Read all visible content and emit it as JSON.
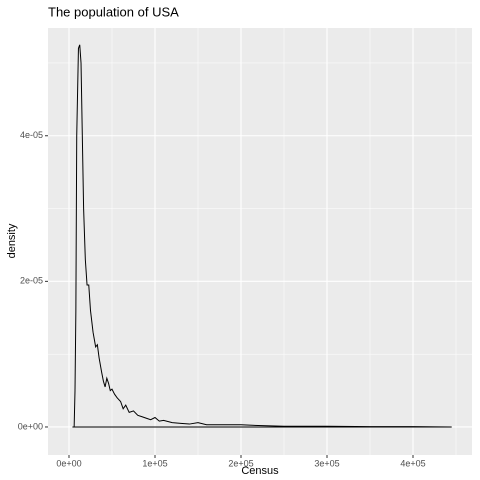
{
  "chart_data": {
    "type": "density",
    "title": "The population of USA",
    "x_label": "Census",
    "y_label": "density",
    "color": "#000000",
    "x": [
      4000,
      6000,
      7000,
      8000,
      9000,
      11000,
      12500,
      14000,
      15500,
      17000,
      19000,
      21000,
      23000,
      25000,
      28000,
      31000,
      33000,
      35000,
      38000,
      40000,
      42000,
      44000,
      46000,
      48000,
      50000,
      53000,
      56000,
      60000,
      63000,
      66000,
      70000,
      75000,
      80000,
      85000,
      90000,
      95000,
      100000,
      105000,
      110000,
      120000,
      130000,
      140000,
      150000,
      160000,
      180000,
      200000,
      220000,
      250000,
      300000,
      350000,
      400000,
      445000
    ],
    "values": [
      0,
      0,
      5e-06,
      1.6e-05,
      4e-05,
      5.2e-05,
      5.25e-05,
      5e-05,
      4e-05,
      3e-05,
      2.3e-05,
      1.95e-05,
      1.95e-05,
      1.6e-05,
      1.3e-05,
      1.1e-05,
      1.13e-05,
      9.5e-06,
      7.5e-06,
      6.3e-06,
      5.5e-06,
      6.7e-06,
      6e-06,
      5e-06,
      5.2e-06,
      4.5e-06,
      4e-06,
      3.5e-06,
      2.5e-06,
      3e-06,
      2e-06,
      2.2e-06,
      1.6e-06,
      1.4e-06,
      1.2e-06,
      1e-06,
      1.3e-06,
      8e-07,
      9e-07,
      6e-07,
      5e-07,
      4e-07,
      6e-07,
      3e-07,
      3e-07,
      3e-07,
      2e-07,
      1e-07,
      1e-07,
      5e-08,
      5e-08,
      0
    ],
    "xlim": [
      -24400,
      468600
    ],
    "ylim": [
      -3.85e-06,
      5.48e-05
    ],
    "xticks": [
      {
        "value": 0,
        "label": "0e+00"
      },
      {
        "value": 100000,
        "label": "1e+05"
      },
      {
        "value": 200000,
        "label": "2e+05"
      },
      {
        "value": 300000,
        "label": "3e+05"
      },
      {
        "value": 400000,
        "label": "4e+05"
      }
    ],
    "yticks": [
      {
        "value": 0,
        "label": "0e+00"
      },
      {
        "value": 2e-05,
        "label": "2e-05"
      },
      {
        "value": 4e-05,
        "label": "4e-05"
      }
    ],
    "xminor": [
      50000,
      150000,
      250000,
      350000,
      450000
    ],
    "yminor": [
      1e-05,
      3e-05,
      5e-05
    ],
    "grid": true
  }
}
